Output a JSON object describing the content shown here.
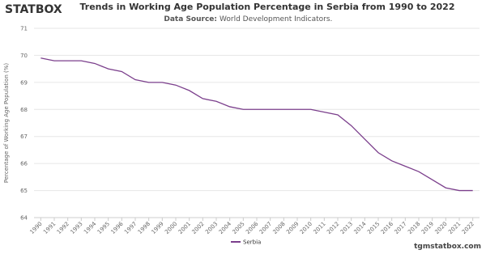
{
  "logo": "STATBOX",
  "footer": "tgmstatbox.com",
  "chart_data": {
    "type": "line",
    "title": "Trends in Working Age Population Percentage in Serbia from 1990 to 2022",
    "source_label": "Data Source:",
    "source": "World Development Indicators.",
    "y_label": "Percentage of Working Age Population (%)",
    "categories": [
      "1990",
      "1991",
      "1992",
      "1993",
      "1994",
      "1995",
      "1996",
      "1997",
      "1998",
      "1999",
      "2000",
      "2001",
      "2002",
      "2003",
      "2004",
      "2005",
      "2006",
      "2007",
      "2008",
      "2009",
      "2010",
      "2011",
      "2012",
      "2013",
      "2014",
      "2015",
      "2016",
      "2017",
      "2018",
      "2019",
      "2020",
      "2021",
      "2022"
    ],
    "series": [
      {
        "name": "Serbia",
        "color": "#7b3f8c",
        "values": [
          69.9,
          69.8,
          69.8,
          69.8,
          69.7,
          69.5,
          69.4,
          69.1,
          69.0,
          69.0,
          68.9,
          68.7,
          68.4,
          68.3,
          68.1,
          68.0,
          68.0,
          68.0,
          68.0,
          68.0,
          68.0,
          67.9,
          67.8,
          67.4,
          66.9,
          66.4,
          66.1,
          65.9,
          65.7,
          65.4,
          65.1,
          65.0,
          65.0
        ]
      }
    ],
    "ylim": [
      64,
      71
    ],
    "yticks": [
      64,
      65,
      66,
      67,
      68,
      69,
      70,
      71
    ],
    "grid": true
  }
}
